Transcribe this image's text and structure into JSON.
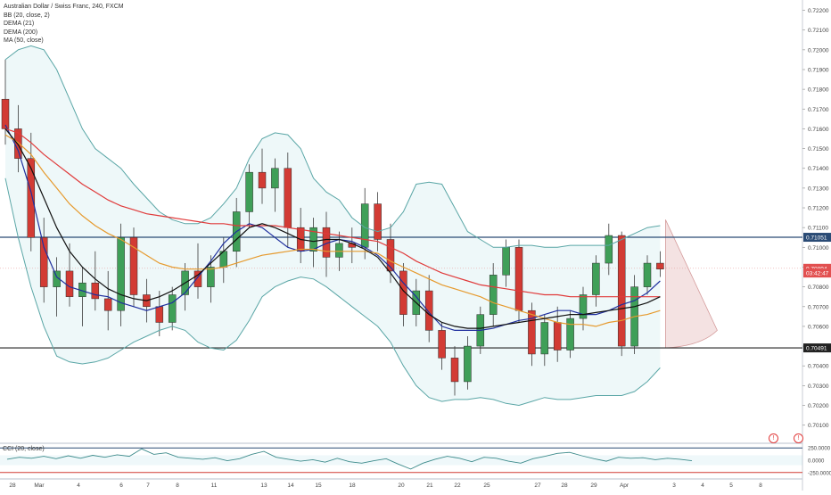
{
  "header": {
    "title": "Australian Dollar / Swiss Franc, 240, FXCM",
    "indicators": [
      "BB (20, close, 2)",
      "DEMA (21)",
      "DEMA (200)",
      "MA (50, close)"
    ]
  },
  "chart_data": [
    {
      "type": "candlestick",
      "title": "Australian Dollar / Swiss Franc, 240, FXCM",
      "y_ticks": [
        "0.72200",
        "0.72100",
        "0.72000",
        "0.71900",
        "0.71800",
        "0.71700",
        "0.71600",
        "0.71500",
        "0.71400",
        "0.71300",
        "0.71200",
        "0.71100",
        "0.71000",
        "0.70900",
        "0.70800",
        "0.70700",
        "0.70600",
        "0.70500",
        "0.70400",
        "0.70300",
        "0.70200",
        "0.70100"
      ],
      "ylim": [
        0.70085,
        0.72225
      ],
      "x_ticks": [
        "28",
        "Mar",
        "4",
        "6",
        "7",
        "8",
        "11",
        "13",
        "14",
        "15",
        "18",
        "20",
        "21",
        "22",
        "25",
        "27",
        "28",
        "29",
        "Apr",
        "3",
        "4",
        "5",
        "8"
      ],
      "price_labels": [
        {
          "value": 0.71051,
          "text": "0.71051",
          "color": "#2a4b75"
        },
        {
          "value": 0.70894,
          "text": "0.70894",
          "color": "#e25050"
        },
        {
          "value": 0.7087,
          "text": "03:42:47",
          "color": "#e25050"
        },
        {
          "value": 0.70491,
          "text": "0.70491",
          "color": "#222222"
        }
      ],
      "horizontal_lines": [
        {
          "value": 0.71051,
          "color": "#2a4b75"
        },
        {
          "value": 0.70491,
          "color": "#222222"
        }
      ],
      "series": [
        {
          "name": "BB upper",
          "color": "#5aa6a6",
          "values": [
            0.7195,
            0.72,
            0.7202,
            0.72,
            0.719,
            0.7175,
            0.716,
            0.715,
            0.7145,
            0.714,
            0.7132,
            0.7125,
            0.7118,
            0.7114,
            0.7112,
            0.7112,
            0.7115,
            0.7122,
            0.713,
            0.7145,
            0.7155,
            0.7158,
            0.7157,
            0.715,
            0.7135,
            0.7128,
            0.7124,
            0.7115,
            0.711,
            0.7108,
            0.711,
            0.7118,
            0.7132,
            0.7133,
            0.7132,
            0.712,
            0.7108,
            0.7104,
            0.71,
            0.71,
            0.7101,
            0.7101,
            0.71,
            0.71,
            0.7101,
            0.7101,
            0.7101,
            0.7101,
            0.7104,
            0.7107,
            0.711,
            0.7111
          ]
        },
        {
          "name": "BB lower",
          "color": "#5aa6a6",
          "values": [
            0.7135,
            0.7105,
            0.708,
            0.706,
            0.7045,
            0.7042,
            0.7041,
            0.7042,
            0.7044,
            0.7048,
            0.7052,
            0.7055,
            0.7058,
            0.706,
            0.7058,
            0.7052,
            0.7049,
            0.7048,
            0.7053,
            0.7063,
            0.7075,
            0.708,
            0.7083,
            0.7085,
            0.7084,
            0.708,
            0.7075,
            0.707,
            0.7065,
            0.706,
            0.7052,
            0.704,
            0.703,
            0.7024,
            0.7022,
            0.7023,
            0.7023,
            0.7024,
            0.7023,
            0.7021,
            0.702,
            0.7022,
            0.7024,
            0.7023,
            0.7023,
            0.7024,
            0.7025,
            0.7025,
            0.7025,
            0.7027,
            0.7032,
            0.7039
          ]
        },
        {
          "name": "DEMA (21)",
          "color": "#1f2f9e",
          "values": [
            0.7162,
            0.7149,
            0.7128,
            0.71,
            0.7085,
            0.708,
            0.7078,
            0.7076,
            0.7075,
            0.7072,
            0.707,
            0.7068,
            0.707,
            0.7072,
            0.7077,
            0.7085,
            0.7093,
            0.7102,
            0.7108,
            0.7112,
            0.711,
            0.7105,
            0.71,
            0.7098,
            0.7099,
            0.7102,
            0.7104,
            0.7103,
            0.71,
            0.7096,
            0.709,
            0.7082,
            0.7075,
            0.7067,
            0.706,
            0.7058,
            0.7058,
            0.7058,
            0.7059,
            0.7061,
            0.7063,
            0.7064,
            0.7066,
            0.7068,
            0.7068,
            0.7066,
            0.7066,
            0.7068,
            0.7071,
            0.7073,
            0.7077,
            0.7083
          ]
        },
        {
          "name": "DEMA (200)",
          "color": "#e03a3a",
          "values": [
            0.716,
            0.7158,
            0.7153,
            0.7147,
            0.7142,
            0.7137,
            0.7132,
            0.7128,
            0.7124,
            0.7121,
            0.7119,
            0.7117,
            0.7116,
            0.7115,
            0.7114,
            0.7113,
            0.7112,
            0.7112,
            0.7111,
            0.7111,
            0.7111,
            0.7111,
            0.711,
            0.7109,
            0.7108,
            0.7107,
            0.7106,
            0.7105,
            0.7104,
            0.7103,
            0.71,
            0.7097,
            0.7093,
            0.709,
            0.7087,
            0.7085,
            0.7083,
            0.7081,
            0.708,
            0.7079,
            0.7078,
            0.7077,
            0.7076,
            0.7076,
            0.7075,
            0.7075,
            0.7075,
            0.7075,
            0.7075,
            0.7075,
            0.7075,
            0.7075
          ]
        },
        {
          "name": "MA (50, close)",
          "color": "#e69a2e",
          "values": [
            0.7157,
            0.7153,
            0.7147,
            0.7138,
            0.713,
            0.7122,
            0.7116,
            0.7111,
            0.7107,
            0.7104,
            0.71,
            0.7096,
            0.7092,
            0.709,
            0.7089,
            0.7089,
            0.7089,
            0.709,
            0.7092,
            0.7094,
            0.7096,
            0.7097,
            0.7098,
            0.7099,
            0.7099,
            0.7098,
            0.7098,
            0.7098,
            0.7098,
            0.7097,
            0.7093,
            0.709,
            0.7087,
            0.7084,
            0.7081,
            0.7079,
            0.7077,
            0.7075,
            0.7072,
            0.707,
            0.7068,
            0.7066,
            0.7064,
            0.7062,
            0.7061,
            0.7061,
            0.706,
            0.7062,
            0.7063,
            0.7065,
            0.7066,
            0.7068
          ]
        },
        {
          "name": "BB basis",
          "color": "#111111",
          "values": [
            0.716,
            0.7152,
            0.714,
            0.7125,
            0.711,
            0.7098,
            0.709,
            0.7084,
            0.7079,
            0.7076,
            0.7074,
            0.7073,
            0.7075,
            0.7078,
            0.7082,
            0.7086,
            0.7092,
            0.7098,
            0.7104,
            0.711,
            0.7112,
            0.711,
            0.7107,
            0.7104,
            0.7103,
            0.7104,
            0.7104,
            0.7102,
            0.7099,
            0.7095,
            0.7087,
            0.7078,
            0.7072,
            0.7066,
            0.7062,
            0.706,
            0.7059,
            0.7059,
            0.706,
            0.7061,
            0.7062,
            0.7063,
            0.7064,
            0.7065,
            0.7066,
            0.7066,
            0.7067,
            0.7068,
            0.7069,
            0.707,
            0.7072,
            0.7075
          ]
        }
      ],
      "candles": [
        [
          0.7175,
          0.7195,
          0.7152,
          0.716
        ],
        [
          0.716,
          0.7172,
          0.7138,
          0.7145
        ],
        [
          0.7145,
          0.7158,
          0.7098,
          0.7105
        ],
        [
          0.7105,
          0.7115,
          0.7072,
          0.708
        ],
        [
          0.708,
          0.7095,
          0.7065,
          0.7088
        ],
        [
          0.7088,
          0.7102,
          0.707,
          0.7075
        ],
        [
          0.7075,
          0.709,
          0.706,
          0.7082
        ],
        [
          0.7082,
          0.7098,
          0.7068,
          0.7074
        ],
        [
          0.7074,
          0.7088,
          0.7058,
          0.7068
        ],
        [
          0.7068,
          0.7112,
          0.706,
          0.7105
        ],
        [
          0.7105,
          0.711,
          0.707,
          0.7076
        ],
        [
          0.7076,
          0.7084,
          0.7062,
          0.707
        ],
        [
          0.707,
          0.7078,
          0.7055,
          0.7062
        ],
        [
          0.7062,
          0.708,
          0.7058,
          0.7076
        ],
        [
          0.7076,
          0.7092,
          0.7068,
          0.7088
        ],
        [
          0.7088,
          0.7102,
          0.7074,
          0.708
        ],
        [
          0.708,
          0.7096,
          0.7072,
          0.709
        ],
        [
          0.709,
          0.7105,
          0.7082,
          0.7098
        ],
        [
          0.7098,
          0.7125,
          0.709,
          0.7118
        ],
        [
          0.7118,
          0.7142,
          0.711,
          0.7138
        ],
        [
          0.7138,
          0.715,
          0.7122,
          0.713
        ],
        [
          0.713,
          0.7145,
          0.7118,
          0.714
        ],
        [
          0.714,
          0.7148,
          0.71,
          0.711
        ],
        [
          0.711,
          0.712,
          0.7092,
          0.7098
        ],
        [
          0.7098,
          0.7115,
          0.709,
          0.711
        ],
        [
          0.711,
          0.7118,
          0.7085,
          0.7095
        ],
        [
          0.7095,
          0.7108,
          0.7088,
          0.7102
        ],
        [
          0.7102,
          0.711,
          0.7092,
          0.71
        ],
        [
          0.71,
          0.713,
          0.7094,
          0.7122
        ],
        [
          0.7122,
          0.7128,
          0.7098,
          0.7104
        ],
        [
          0.7104,
          0.7112,
          0.7082,
          0.7088
        ],
        [
          0.7088,
          0.7092,
          0.706,
          0.7066
        ],
        [
          0.7066,
          0.7084,
          0.706,
          0.7078
        ],
        [
          0.7078,
          0.7086,
          0.7052,
          0.7058
        ],
        [
          0.7058,
          0.7062,
          0.7038,
          0.7044
        ],
        [
          0.7044,
          0.705,
          0.7025,
          0.7032
        ],
        [
          0.7032,
          0.7055,
          0.7028,
          0.705
        ],
        [
          0.705,
          0.707,
          0.7046,
          0.7066
        ],
        [
          0.7066,
          0.7092,
          0.706,
          0.7086
        ],
        [
          0.7086,
          0.7104,
          0.708,
          0.71
        ],
        [
          0.71,
          0.7104,
          0.7062,
          0.7068
        ],
        [
          0.7068,
          0.7072,
          0.704,
          0.7046
        ],
        [
          0.7046,
          0.7066,
          0.704,
          0.7062
        ],
        [
          0.7062,
          0.707,
          0.7042,
          0.7048
        ],
        [
          0.7048,
          0.7068,
          0.7044,
          0.7064
        ],
        [
          0.7064,
          0.708,
          0.7058,
          0.7076
        ],
        [
          0.7076,
          0.7096,
          0.707,
          0.7092
        ],
        [
          0.7092,
          0.7112,
          0.7086,
          0.7106
        ],
        [
          0.7106,
          0.7108,
          0.7045,
          0.705
        ],
        [
          0.705,
          0.7086,
          0.7046,
          0.708
        ],
        [
          0.708,
          0.7096,
          0.7076,
          0.7092
        ],
        [
          0.7092,
          0.7098,
          0.7085,
          0.7089
        ]
      ]
    },
    {
      "type": "line",
      "title": "CCI (20, close)",
      "y_ticks": [
        "250.0000",
        "0.0000",
        "-250.0000"
      ],
      "ylim": [
        -290,
        290
      ],
      "bands": [
        250,
        -250
      ],
      "series": [
        {
          "name": "CCI (20, close)",
          "color": "#3d8b8b",
          "values": [
            20,
            60,
            40,
            80,
            30,
            90,
            40,
            100,
            60,
            110,
            80,
            230,
            120,
            150,
            60,
            40,
            20,
            50,
            -10,
            30,
            120,
            180,
            60,
            20,
            -20,
            10,
            -40,
            40,
            -30,
            -60,
            -10,
            30,
            -80,
            -180,
            -60,
            20,
            80,
            40,
            -30,
            60,
            40,
            -20,
            -60,
            30,
            80,
            140,
            160,
            90,
            30,
            -20,
            60,
            40,
            50,
            10,
            40,
            20,
            -10
          ]
        }
      ]
    }
  ]
}
